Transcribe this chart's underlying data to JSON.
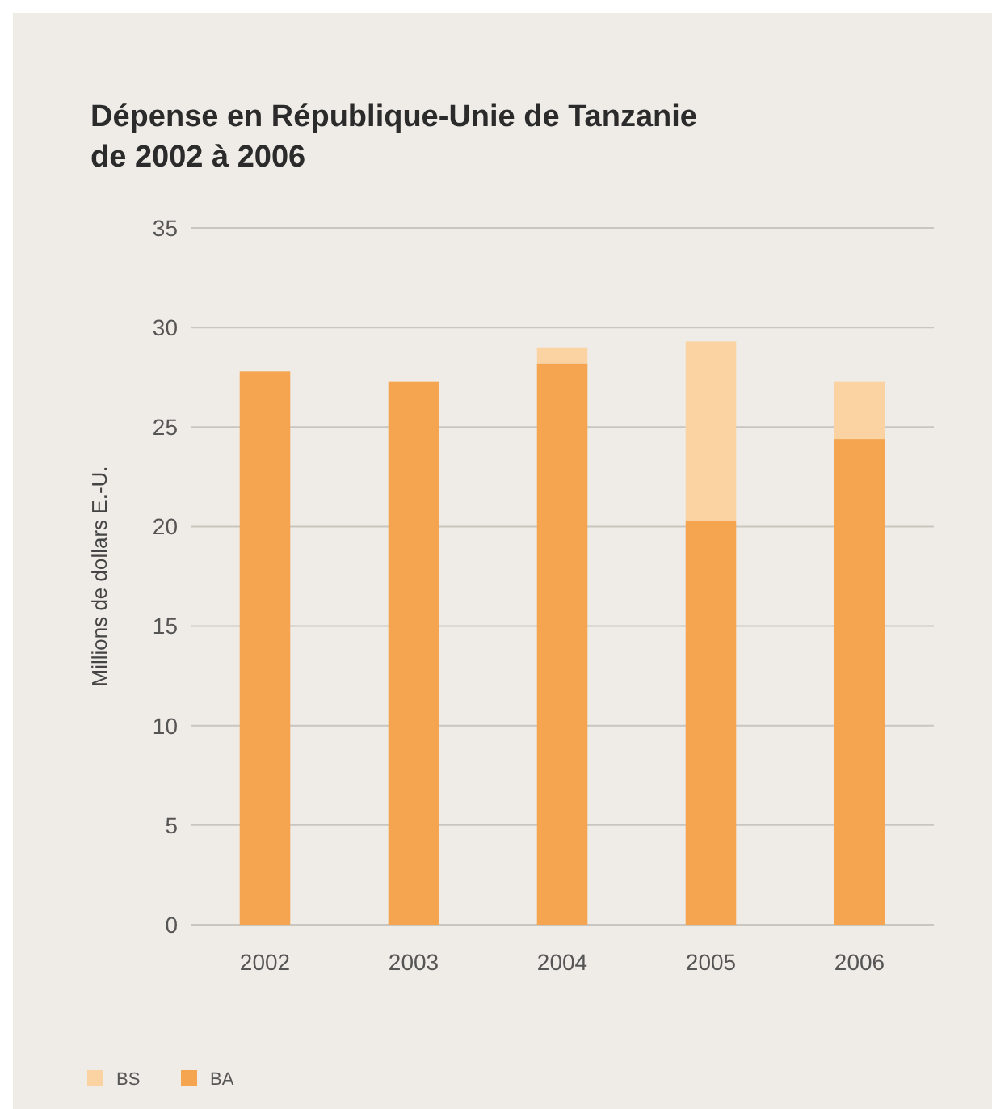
{
  "chart_data": {
    "type": "bar",
    "title": "Dépense en République-Unie de Tanzanie de 2002 à 2006",
    "ylabel": "Millions de dollars E.-U.",
    "categories": [
      "2002",
      "2003",
      "2004",
      "2005",
      "2006"
    ],
    "stacked": true,
    "series": [
      {
        "name": "BA",
        "color": "#f5a54f",
        "values": [
          27.8,
          27.3,
          28.2,
          20.3,
          24.4
        ]
      },
      {
        "name": "BS",
        "color": "#fbd3a2",
        "values": [
          0,
          0,
          0.8,
          9.0,
          2.9
        ]
      }
    ],
    "ylim": [
      0,
      35
    ],
    "yticks": [
      0,
      5,
      10,
      15,
      20,
      25,
      30,
      35
    ],
    "grid": "y",
    "legend": "bottom left"
  }
}
